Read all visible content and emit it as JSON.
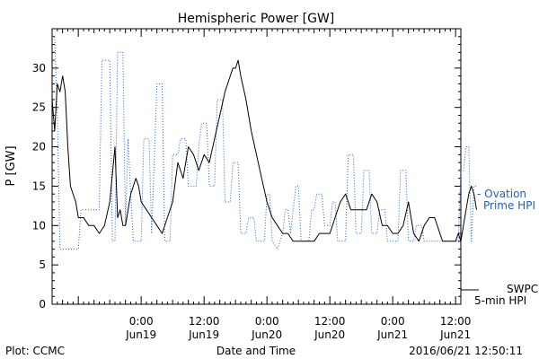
{
  "chart_data": {
    "type": "line",
    "title": "Hemispheric Power [GW]",
    "ylabel": "P [GW]",
    "xlabel": "Date and Time",
    "footer_left": "Plot: CCMC",
    "footer_right": "2016/06/21 12:50:11",
    "ylim": [
      0,
      35
    ],
    "xlim": [
      "2016-06-18 07:00",
      "2016-06-21 13:00"
    ],
    "y_ticks": [
      0,
      5,
      10,
      15,
      20,
      25,
      30
    ],
    "x_ticks": [
      {
        "time": "2016-06-19 00:00",
        "label": "0:00",
        "sub": "Jun19"
      },
      {
        "time": "2016-06-19 12:00",
        "label": "12:00",
        "sub": "Jun19"
      },
      {
        "time": "2016-06-20 00:00",
        "label": "0:00",
        "sub": "Jun20"
      },
      {
        "time": "2016-06-20 12:00",
        "label": "12:00",
        "sub": "Jun20"
      },
      {
        "time": "2016-06-21 00:00",
        "label": "0:00",
        "sub": "Jun21"
      },
      {
        "time": "2016-06-21 12:00",
        "label": "12:00",
        "sub": "Jun21"
      }
    ],
    "grid": false,
    "series": [
      {
        "name": "SWPC 5-min HPI",
        "legend_lines": [
          "SWPC",
          "5-min HPI"
        ],
        "color": "#000000",
        "style": "solid",
        "points": [
          [
            "2016-06-18 07:00",
            26
          ],
          [
            "2016-06-18 07:30",
            22
          ],
          [
            "2016-06-18 08:00",
            28
          ],
          [
            "2016-06-18 08:30",
            27
          ],
          [
            "2016-06-18 09:00",
            29
          ],
          [
            "2016-06-18 09:30",
            27
          ],
          [
            "2016-06-18 10:00",
            20
          ],
          [
            "2016-06-18 10:30",
            15
          ],
          [
            "2016-06-18 11:00",
            14
          ],
          [
            "2016-06-18 11:30",
            13
          ],
          [
            "2016-06-18 12:00",
            11
          ],
          [
            "2016-06-18 13:00",
            11
          ],
          [
            "2016-06-18 14:00",
            10
          ],
          [
            "2016-06-18 15:00",
            10
          ],
          [
            "2016-06-18 16:00",
            9
          ],
          [
            "2016-06-18 17:00",
            10
          ],
          [
            "2016-06-18 18:00",
            13
          ],
          [
            "2016-06-18 19:00",
            20
          ],
          [
            "2016-06-18 19:30",
            11
          ],
          [
            "2016-06-18 20:00",
            12
          ],
          [
            "2016-06-18 20:30",
            10
          ],
          [
            "2016-06-18 21:00",
            10
          ],
          [
            "2016-06-18 22:00",
            14
          ],
          [
            "2016-06-18 23:00",
            16
          ],
          [
            "2016-06-18 23:30",
            15
          ],
          [
            "2016-06-19 00:00",
            13
          ],
          [
            "2016-06-19 01:00",
            12
          ],
          [
            "2016-06-19 02:00",
            11
          ],
          [
            "2016-06-19 03:00",
            10
          ],
          [
            "2016-06-19 04:00",
            9
          ],
          [
            "2016-06-19 05:00",
            11
          ],
          [
            "2016-06-19 06:00",
            13
          ],
          [
            "2016-06-19 07:00",
            18
          ],
          [
            "2016-06-19 08:00",
            16
          ],
          [
            "2016-06-19 09:00",
            20
          ],
          [
            "2016-06-19 10:00",
            19
          ],
          [
            "2016-06-19 11:00",
            17
          ],
          [
            "2016-06-19 12:00",
            19
          ],
          [
            "2016-06-19 13:00",
            18
          ],
          [
            "2016-06-19 14:00",
            21
          ],
          [
            "2016-06-19 15:00",
            24
          ],
          [
            "2016-06-19 16:00",
            27
          ],
          [
            "2016-06-19 17:00",
            29
          ],
          [
            "2016-06-19 17:30",
            30
          ],
          [
            "2016-06-19 18:00",
            30
          ],
          [
            "2016-06-19 18:30",
            31
          ],
          [
            "2016-06-19 19:00",
            29
          ],
          [
            "2016-06-19 20:00",
            26
          ],
          [
            "2016-06-19 21:00",
            22
          ],
          [
            "2016-06-19 22:00",
            19
          ],
          [
            "2016-06-19 23:00",
            16
          ],
          [
            "2016-06-20 00:00",
            13
          ],
          [
            "2016-06-20 01:00",
            11
          ],
          [
            "2016-06-20 02:00",
            10
          ],
          [
            "2016-06-20 03:00",
            9
          ],
          [
            "2016-06-20 04:00",
            9
          ],
          [
            "2016-06-20 05:00",
            8
          ],
          [
            "2016-06-20 06:00",
            8
          ],
          [
            "2016-06-20 07:00",
            8
          ],
          [
            "2016-06-20 08:00",
            8
          ],
          [
            "2016-06-20 09:00",
            8
          ],
          [
            "2016-06-20 10:00",
            9
          ],
          [
            "2016-06-20 11:00",
            9
          ],
          [
            "2016-06-20 12:00",
            9
          ],
          [
            "2016-06-20 13:00",
            11
          ],
          [
            "2016-06-20 14:00",
            13
          ],
          [
            "2016-06-20 15:00",
            14
          ],
          [
            "2016-06-20 16:00",
            12
          ],
          [
            "2016-06-20 17:00",
            12
          ],
          [
            "2016-06-20 18:00",
            12
          ],
          [
            "2016-06-20 19:00",
            12
          ],
          [
            "2016-06-20 20:00",
            14
          ],
          [
            "2016-06-20 21:00",
            13
          ],
          [
            "2016-06-20 22:00",
            10
          ],
          [
            "2016-06-20 23:00",
            10
          ],
          [
            "2016-06-21 00:00",
            9
          ],
          [
            "2016-06-21 01:00",
            9
          ],
          [
            "2016-06-21 02:00",
            10
          ],
          [
            "2016-06-21 03:00",
            13
          ],
          [
            "2016-06-21 04:00",
            9
          ],
          [
            "2016-06-21 05:00",
            8
          ],
          [
            "2016-06-21 06:00",
            10
          ],
          [
            "2016-06-21 07:00",
            11
          ],
          [
            "2016-06-21 08:00",
            11
          ],
          [
            "2016-06-21 09:00",
            9
          ],
          [
            "2016-06-21 09:30",
            8
          ],
          [
            "2016-06-21 10:00",
            8
          ],
          [
            "2016-06-21 10:30",
            8
          ],
          [
            "2016-06-21 11:00",
            8
          ],
          [
            "2016-06-21 11:30",
            8
          ],
          [
            "2016-06-21 12:00",
            8
          ],
          [
            "2016-06-21 12:30",
            9
          ],
          [
            "2016-06-21 13:00",
            8
          ],
          [
            "2016-06-21 13:30",
            10
          ],
          [
            "2016-06-21 14:00",
            12
          ],
          [
            "2016-06-21 14:30",
            14
          ],
          [
            "2016-06-21 15:00",
            15
          ],
          [
            "2016-06-21 15:30",
            14
          ],
          [
            "2016-06-21 16:00",
            12
          ]
        ]
      },
      {
        "name": "Ovation Prime HPI",
        "legend_lines": [
          "- Ovation",
          "Prime HPI"
        ],
        "color": "#1f5fbf",
        "style": "dotted",
        "points": [
          [
            "2016-06-18 07:00",
            34
          ],
          [
            "2016-06-18 07:30",
            34
          ],
          [
            "2016-06-18 08:00",
            24
          ],
          [
            "2016-06-18 08:30",
            7
          ],
          [
            "2016-06-18 09:00",
            7
          ],
          [
            "2016-06-18 12:00",
            7
          ],
          [
            "2016-06-18 12:30",
            12
          ],
          [
            "2016-06-18 16:00",
            12
          ],
          [
            "2016-06-18 16:30",
            31
          ],
          [
            "2016-06-18 18:00",
            31
          ],
          [
            "2016-06-18 18:30",
            8
          ],
          [
            "2016-06-18 19:00",
            8
          ],
          [
            "2016-06-18 19:30",
            32
          ],
          [
            "2016-06-18 20:30",
            32
          ],
          [
            "2016-06-18 21:00",
            10
          ],
          [
            "2016-06-18 21:30",
            21
          ],
          [
            "2016-06-18 22:00",
            14
          ],
          [
            "2016-06-18 22:30",
            8
          ],
          [
            "2016-06-19 00:00",
            8
          ],
          [
            "2016-06-19 00:30",
            21
          ],
          [
            "2016-06-19 01:30",
            21
          ],
          [
            "2016-06-19 02:00",
            9
          ],
          [
            "2016-06-19 03:00",
            28
          ],
          [
            "2016-06-19 04:00",
            28
          ],
          [
            "2016-06-19 04:30",
            8
          ],
          [
            "2016-06-19 05:30",
            8
          ],
          [
            "2016-06-19 06:00",
            19
          ],
          [
            "2016-06-19 07:00",
            19
          ],
          [
            "2016-06-19 07:30",
            21
          ],
          [
            "2016-06-19 08:30",
            21
          ],
          [
            "2016-06-19 09:00",
            15
          ],
          [
            "2016-06-19 10:30",
            15
          ],
          [
            "2016-06-19 11:00",
            20
          ],
          [
            "2016-06-19 11:30",
            23
          ],
          [
            "2016-06-19 12:30",
            23
          ],
          [
            "2016-06-19 13:00",
            15
          ],
          [
            "2016-06-19 14:00",
            15
          ],
          [
            "2016-06-19 14:30",
            26
          ],
          [
            "2016-06-19 15:30",
            26
          ],
          [
            "2016-06-19 16:00",
            13
          ],
          [
            "2016-06-19 17:00",
            13
          ],
          [
            "2016-06-19 17:30",
            18
          ],
          [
            "2016-06-19 18:30",
            18
          ],
          [
            "2016-06-19 19:00",
            9
          ],
          [
            "2016-06-19 20:00",
            9
          ],
          [
            "2016-06-19 20:30",
            11
          ],
          [
            "2016-06-19 21:30",
            11
          ],
          [
            "2016-06-19 22:00",
            8
          ],
          [
            "2016-06-19 23:30",
            8
          ],
          [
            "2016-06-20 00:00",
            14
          ],
          [
            "2016-06-20 00:30",
            14
          ],
          [
            "2016-06-20 01:00",
            8
          ],
          [
            "2016-06-20 02:00",
            7
          ],
          [
            "2016-06-20 03:00",
            9
          ],
          [
            "2016-06-20 03:30",
            12
          ],
          [
            "2016-06-20 04:00",
            12
          ],
          [
            "2016-06-20 04:30",
            9
          ],
          [
            "2016-06-20 05:30",
            15
          ],
          [
            "2016-06-20 06:00",
            15
          ],
          [
            "2016-06-20 06:30",
            8
          ],
          [
            "2016-06-20 08:00",
            8
          ],
          [
            "2016-06-20 08:30",
            12
          ],
          [
            "2016-06-20 09:00",
            12
          ],
          [
            "2016-06-20 09:30",
            14
          ],
          [
            "2016-06-20 10:30",
            14
          ],
          [
            "2016-06-20 11:00",
            10
          ],
          [
            "2016-06-20 12:00",
            10
          ],
          [
            "2016-06-20 12:30",
            13
          ],
          [
            "2016-06-20 13:00",
            13
          ],
          [
            "2016-06-20 13:30",
            8
          ],
          [
            "2016-06-20 15:00",
            8
          ],
          [
            "2016-06-20 15:30",
            19
          ],
          [
            "2016-06-20 16:30",
            19
          ],
          [
            "2016-06-20 17:00",
            9
          ],
          [
            "2016-06-20 18:00",
            9
          ],
          [
            "2016-06-20 18:30",
            17
          ],
          [
            "2016-06-20 19:30",
            17
          ],
          [
            "2016-06-20 20:00",
            9
          ],
          [
            "2016-06-20 21:00",
            9
          ],
          [
            "2016-06-20 21:30",
            12
          ],
          [
            "2016-06-20 22:30",
            12
          ],
          [
            "2016-06-20 23:00",
            8
          ],
          [
            "2016-06-21 01:00",
            8
          ],
          [
            "2016-06-21 01:30",
            17
          ],
          [
            "2016-06-21 02:30",
            17
          ],
          [
            "2016-06-21 03:00",
            8
          ],
          [
            "2016-06-21 04:00",
            8
          ],
          [
            "2016-06-21 04:30",
            10
          ],
          [
            "2016-06-21 05:30",
            10
          ],
          [
            "2016-06-21 06:00",
            8
          ],
          [
            "2016-06-21 12:30",
            8
          ],
          [
            "2016-06-21 13:00",
            17
          ],
          [
            "2016-06-21 13:30",
            17
          ],
          [
            "2016-06-21 14:00",
            20
          ],
          [
            "2016-06-21 14:30",
            20
          ],
          [
            "2016-06-21 15:00",
            8
          ],
          [
            "2016-06-21 15:30",
            15
          ],
          [
            "2016-06-21 16:00",
            15
          ]
        ]
      }
    ]
  }
}
